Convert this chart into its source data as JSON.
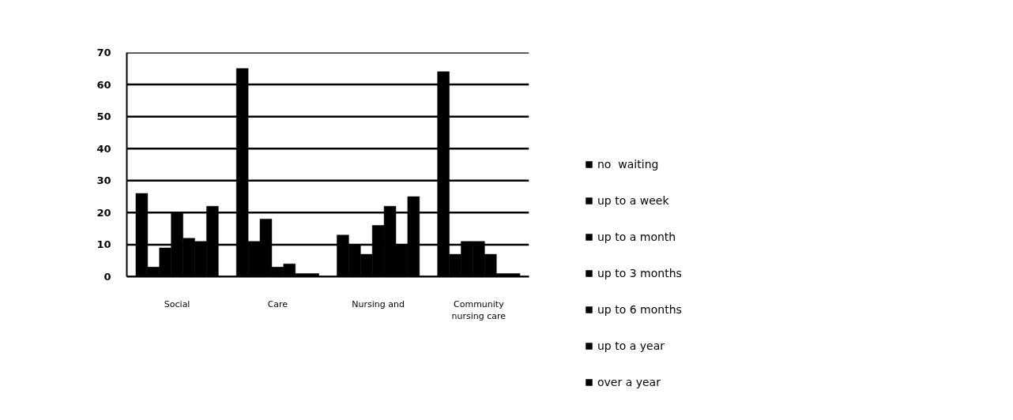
{
  "chart_data": {
    "type": "bar",
    "categories": [
      "Social",
      "Care",
      "Nursing and",
      "Community nursing care"
    ],
    "series": [
      {
        "name": "no  waiting",
        "color": "#000000",
        "values": [
          26,
          65,
          13,
          64
        ]
      },
      {
        "name": "up to a week",
        "color": "#000000",
        "values": [
          3,
          11,
          10,
          7
        ]
      },
      {
        "name": "up to a month",
        "color": "#000000",
        "values": [
          9,
          18,
          7,
          11
        ]
      },
      {
        "name": "up to 3 months",
        "color": "#000000",
        "values": [
          20,
          3,
          16,
          11
        ]
      },
      {
        "name": "up to 6 months",
        "color": "#000000",
        "values": [
          12,
          4,
          22,
          7
        ]
      },
      {
        "name": "up to a year",
        "color": "#000000",
        "values": [
          11,
          1,
          10,
          1
        ]
      },
      {
        "name": "over a year",
        "color": "#000000",
        "values": [
          22,
          1,
          25,
          1
        ]
      }
    ],
    "ylim": [
      0,
      70
    ],
    "yticks": [
      0,
      10,
      20,
      30,
      40,
      50,
      60,
      70
    ],
    "grid": "y",
    "legend": "right"
  }
}
